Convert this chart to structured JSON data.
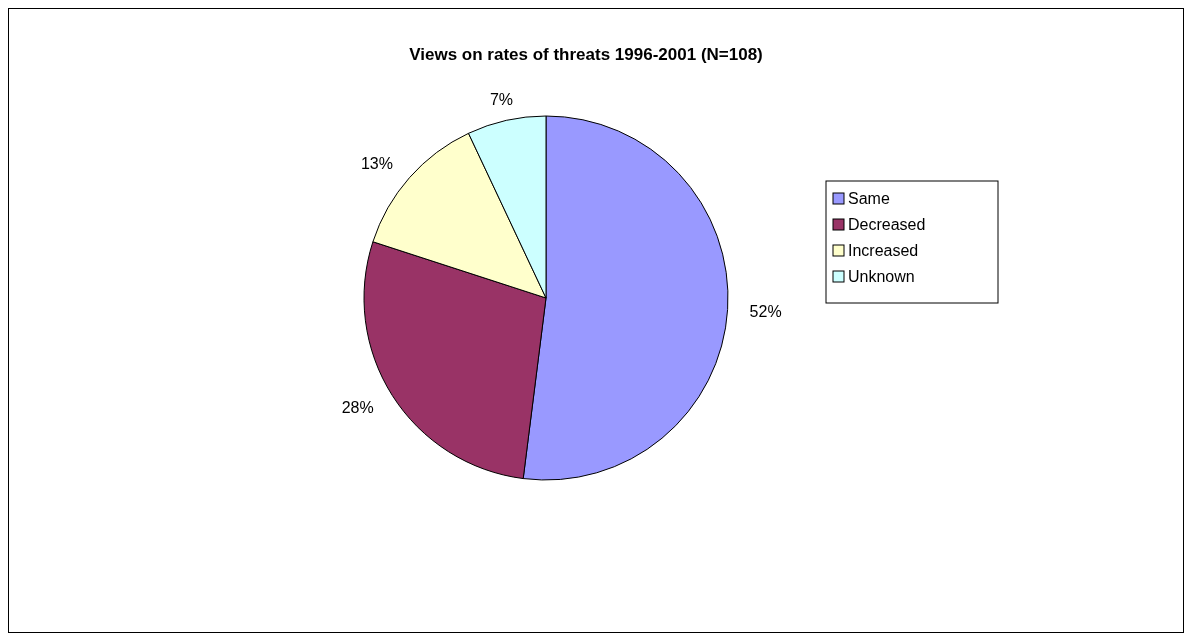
{
  "chart_data": {
    "type": "pie",
    "title": "Views on rates of threats 1996-2001 (N=108)",
    "categories": [
      "Same",
      "Decreased",
      "Increased",
      "Unknown"
    ],
    "values": [
      52,
      28,
      13,
      7
    ],
    "colors": [
      "#9999ff",
      "#993366",
      "#ffffcc",
      "#ccffff"
    ],
    "value_labels": [
      "52%",
      "28%",
      "13%",
      "7%"
    ],
    "legend": "right"
  }
}
